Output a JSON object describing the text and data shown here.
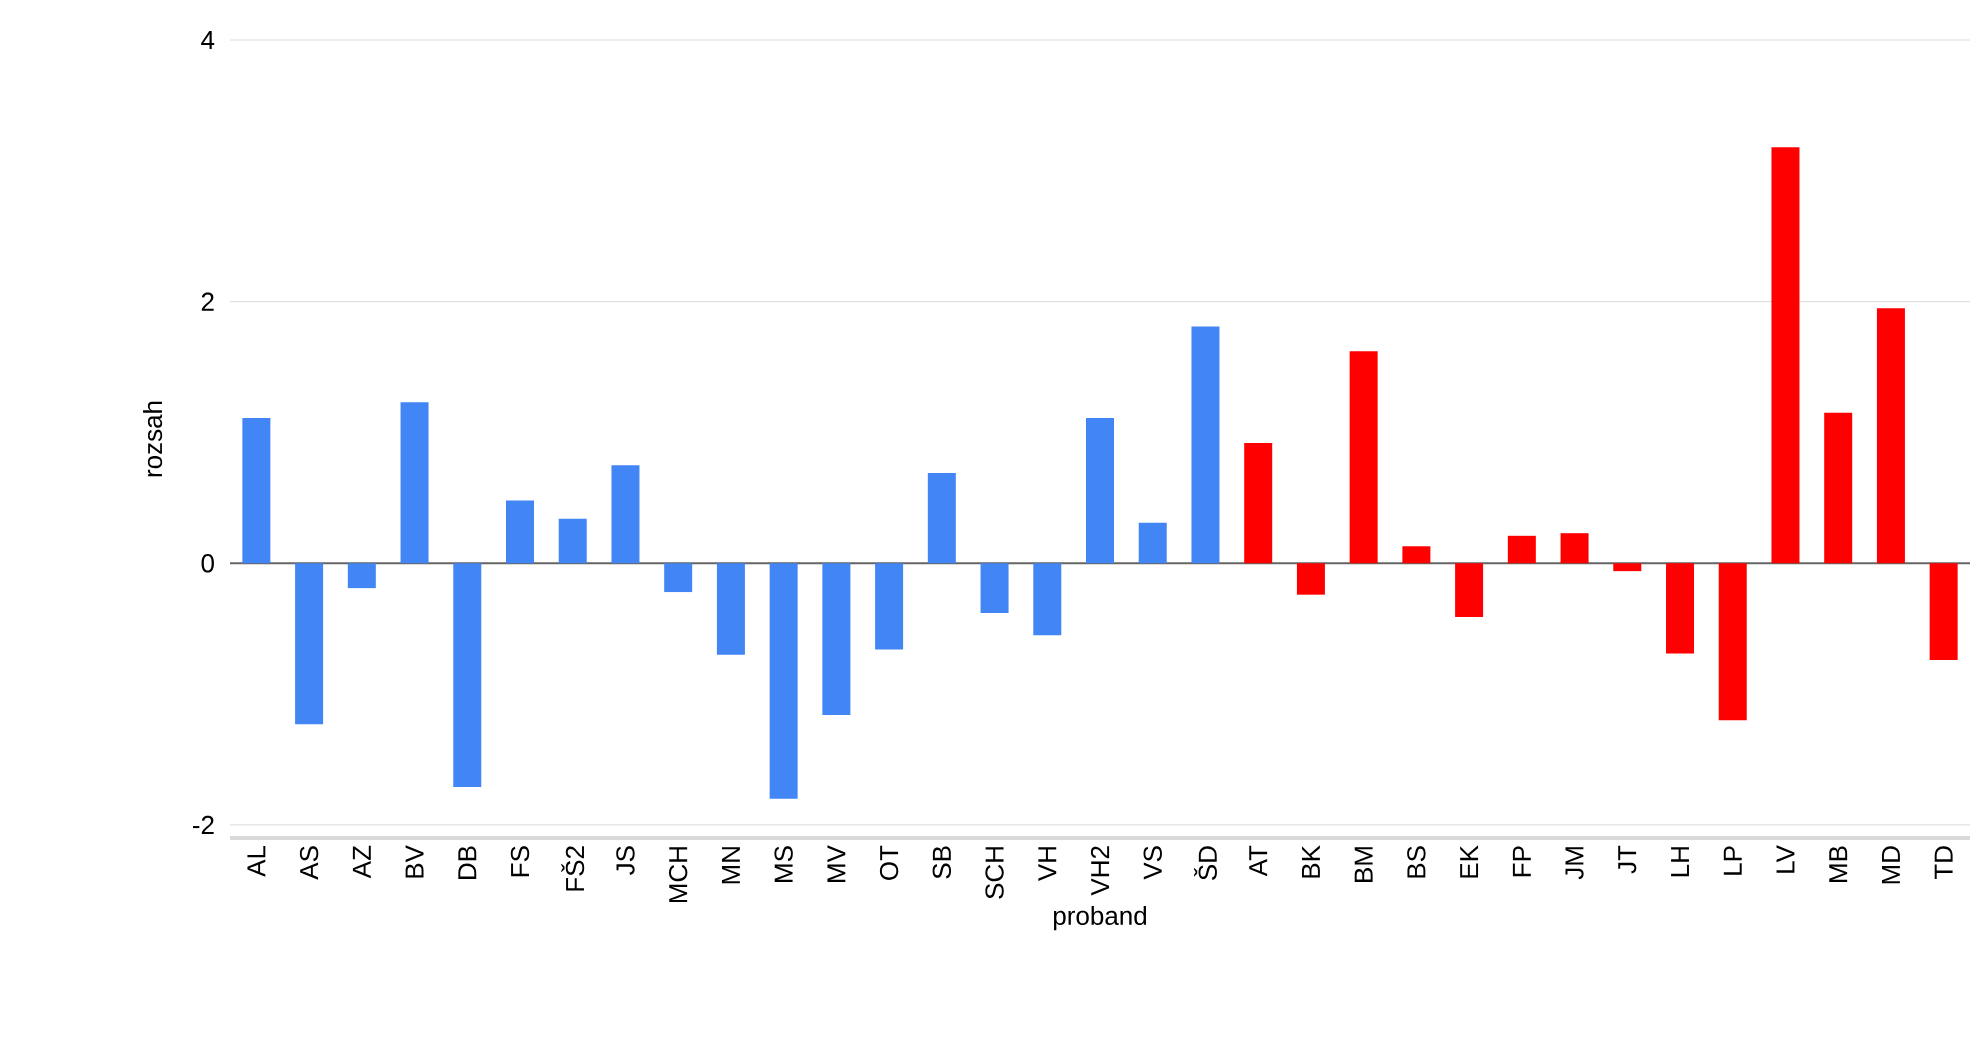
{
  "chart_data": {
    "type": "bar",
    "xlabel": "proband",
    "ylabel": "rozsah",
    "categories": [
      "AL",
      "AS",
      "AZ",
      "BV",
      "DB",
      "FS",
      "FŠ2",
      "JS",
      "MCH",
      "MN",
      "MS",
      "MV",
      "OT",
      "SB",
      "SCH",
      "VH",
      "VH2",
      "VS",
      "ŠD",
      "AT",
      "BK",
      "BM",
      "BS",
      "EK",
      "FP",
      "JM",
      "JT",
      "LH",
      "LP",
      "LV",
      "MB",
      "MD",
      "TD"
    ],
    "values": [
      1.11,
      -1.23,
      -0.19,
      1.23,
      -1.71,
      0.48,
      0.34,
      0.75,
      -0.22,
      -0.7,
      -1.8,
      -1.16,
      -0.66,
      0.69,
      -0.38,
      -0.55,
      1.11,
      0.31,
      1.81,
      0.92,
      -0.24,
      1.62,
      0.13,
      -0.41,
      0.21,
      0.23,
      -0.06,
      -0.69,
      -1.2,
      3.18,
      1.15,
      1.95,
      -0.74
    ],
    "colors": [
      "#4285f4",
      "#4285f4",
      "#4285f4",
      "#4285f4",
      "#4285f4",
      "#4285f4",
      "#4285f4",
      "#4285f4",
      "#4285f4",
      "#4285f4",
      "#4285f4",
      "#4285f4",
      "#4285f4",
      "#4285f4",
      "#4285f4",
      "#4285f4",
      "#4285f4",
      "#4285f4",
      "#4285f4",
      "#ff0000",
      "#ff0000",
      "#ff0000",
      "#ff0000",
      "#ff0000",
      "#ff0000",
      "#ff0000",
      "#ff0000",
      "#ff0000",
      "#ff0000",
      "#ff0000",
      "#ff0000",
      "#ff0000",
      "#ff0000"
    ],
    "ylim": [
      -2.1,
      4
    ],
    "yticks": [
      -2,
      0,
      2,
      4
    ],
    "grid": "y"
  }
}
